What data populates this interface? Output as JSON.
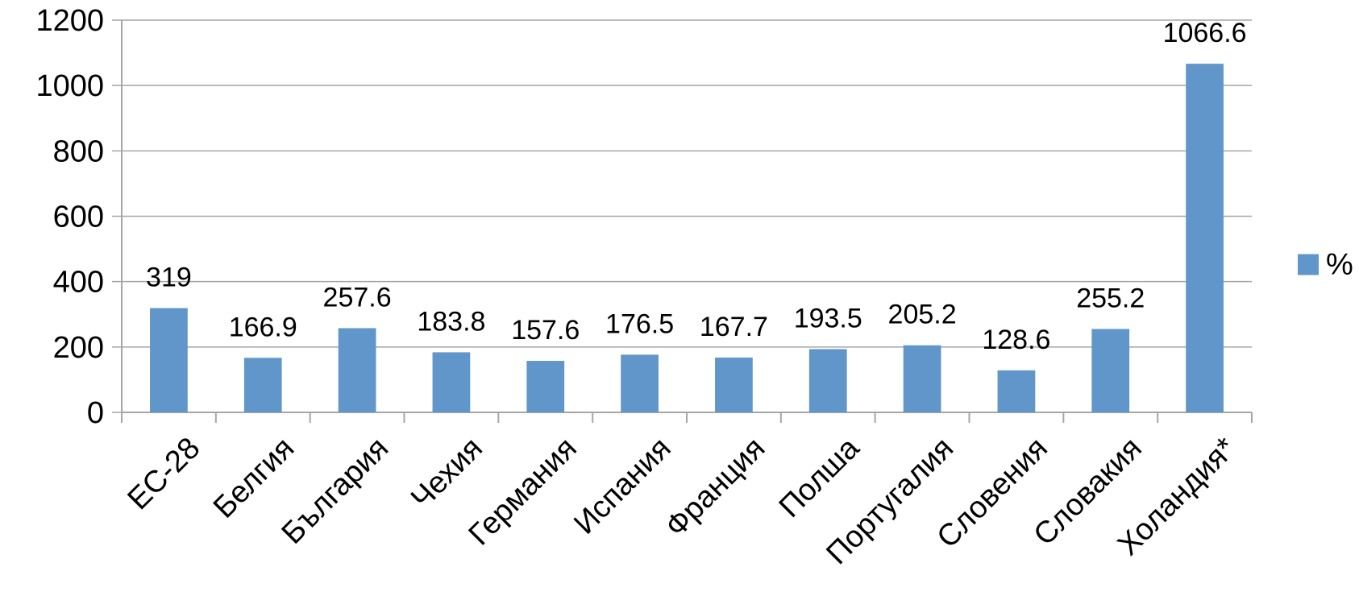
{
  "chart_data": {
    "type": "bar",
    "categories": [
      "ЕС-28",
      "Белгия",
      "България",
      "Чехия",
      "Германия",
      "Испания",
      "Франция",
      "Полша",
      "Португалия",
      "Словения",
      "Словакия",
      "Холандия*"
    ],
    "series": [
      {
        "name": "%",
        "color": "#6096c9",
        "values": [
          319,
          166.9,
          257.6,
          183.8,
          157.6,
          176.5,
          167.7,
          193.5,
          205.2,
          128.6,
          255.2,
          1066.6
        ]
      }
    ],
    "ylim": [
      0,
      1200
    ],
    "yticks": [
      0,
      200,
      400,
      600,
      800,
      1000,
      1200
    ],
    "grid": true,
    "legend": "right"
  }
}
